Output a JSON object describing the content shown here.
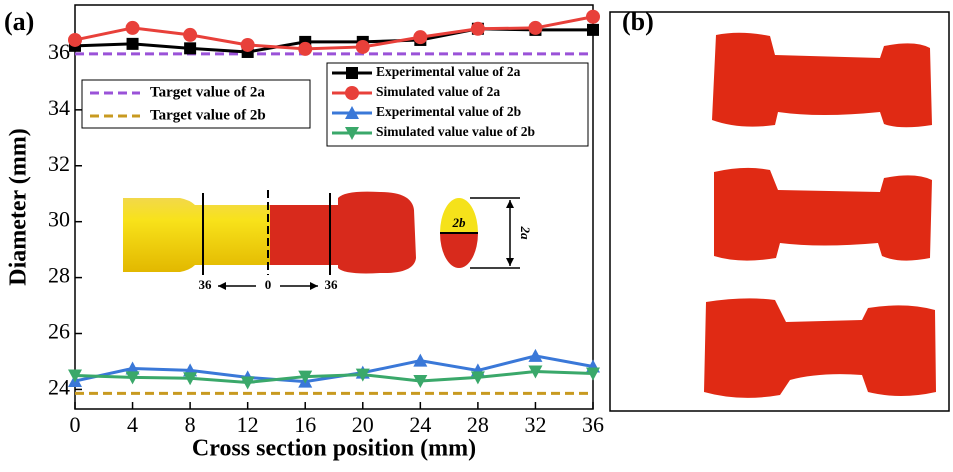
{
  "chart_data": {
    "type": "line",
    "panel_label": "(a)",
    "x_label": "Cross section position (mm)",
    "y_label": "Diameter (mm)",
    "x": [
      0,
      4,
      8,
      12,
      16,
      20,
      24,
      28,
      32,
      36
    ],
    "xlim": [
      0,
      36
    ],
    "xticks": [
      0,
      4,
      8,
      12,
      16,
      20,
      24,
      28,
      32,
      36
    ],
    "ylim": [
      23.3,
      37.75
    ],
    "yticks": [
      24,
      26,
      28,
      30,
      32,
      34,
      36
    ],
    "series": [
      {
        "name": "Experimental value of 2a",
        "color": "#000000",
        "marker": "square",
        "values": [
          36.29,
          36.36,
          36.2,
          36.07,
          36.43,
          36.43,
          36.5,
          36.9,
          36.86,
          36.86
        ]
      },
      {
        "name": "Simulated value of 2a",
        "color": "#e8403a",
        "marker": "circle",
        "values": [
          36.5,
          36.93,
          36.68,
          36.32,
          36.18,
          36.25,
          36.6,
          36.9,
          36.93,
          37.33
        ]
      },
      {
        "name": "Experimental value of 2b",
        "color": "#3a78d8",
        "marker": "triangle-up",
        "values": [
          24.3,
          24.75,
          24.68,
          24.43,
          24.28,
          24.6,
          25.03,
          24.68,
          25.2,
          24.82
        ]
      },
      {
        "name": "Simulated value value of 2b",
        "color": "#3aa86a",
        "marker": "triangle-down",
        "values": [
          24.5,
          24.43,
          24.4,
          24.25,
          24.46,
          24.53,
          24.3,
          24.43,
          24.64,
          24.57
        ]
      }
    ],
    "reference_lines": [
      {
        "name": "Target value of 2a",
        "color": "#9a52d8",
        "value": 36
      },
      {
        "name": "Target value of 2b",
        "color": "#c89a20",
        "value": 23.86
      }
    ],
    "inset_labels": {
      "left": "36",
      "center": "0",
      "right": "36",
      "width": "2b",
      "height": "2a"
    }
  },
  "panel_b": {
    "label": "(b)"
  }
}
